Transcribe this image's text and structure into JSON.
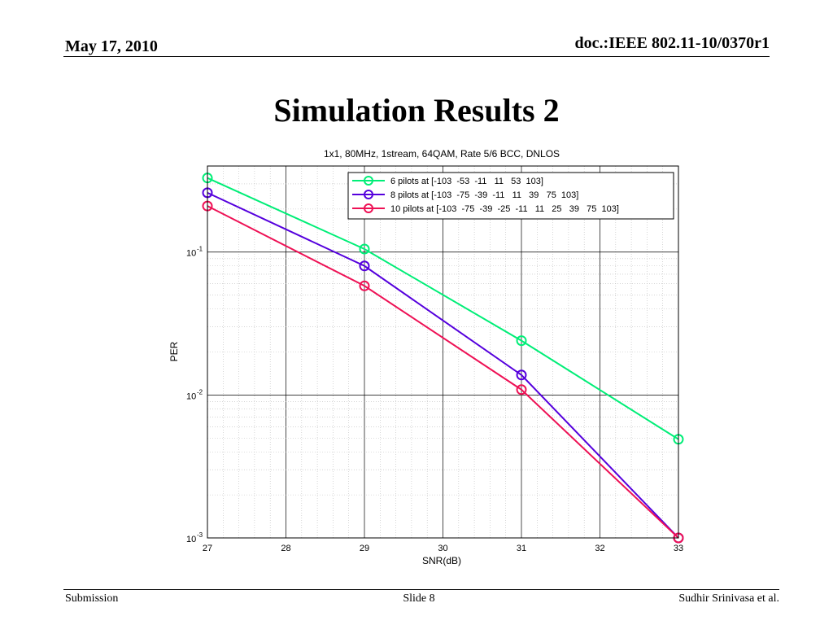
{
  "header": {
    "date": "May 17, 2010",
    "doc_id": "doc.:IEEE 802.11-10/0370r1"
  },
  "slide": {
    "title": "Simulation Results 2"
  },
  "footer": {
    "left": "Submission",
    "center": "Slide 8",
    "right": "Sudhir Srinivasa et al."
  },
  "chart_data": {
    "type": "line",
    "title": "1x1, 80MHz, 1stream, 64QAM, Rate 5/6 BCC, DNLOS",
    "xlabel": "SNR(dB)",
    "ylabel": "PER",
    "xlim": [
      27,
      33
    ],
    "ylim": [
      0.001,
      0.4
    ],
    "yscale": "log",
    "x_ticks": [
      "27",
      "28",
      "29",
      "30",
      "31",
      "32",
      "33"
    ],
    "y_ticks": [
      {
        "base": "10",
        "exp": "-1",
        "value": 0.1
      },
      {
        "base": "10",
        "exp": "-2",
        "value": 0.01
      },
      {
        "base": "10",
        "exp": "-3",
        "value": 0.001
      }
    ],
    "grid": true,
    "legend_position": "top-right",
    "marker": "circle",
    "series": [
      {
        "name": "6 pilots at [-103  -53  -11   11   53  103]",
        "color": "#00ee77",
        "x": [
          27,
          29,
          31,
          33
        ],
        "y": [
          0.33,
          0.105,
          0.024,
          0.0049
        ]
      },
      {
        "name": "8 pilots at [-103  -75  -39  -11   11   39   75  103]",
        "color": "#5500dd",
        "x": [
          27,
          29,
          31,
          33
        ],
        "y": [
          0.26,
          0.08,
          0.0138,
          0.001
        ]
      },
      {
        "name": "10 pilots at [-103  -75  -39  -25  -11   11   25   39   75  103]",
        "color": "#ee1155",
        "x": [
          27,
          29,
          31,
          33
        ],
        "y": [
          0.21,
          0.058,
          0.0109,
          0.001
        ]
      }
    ]
  }
}
